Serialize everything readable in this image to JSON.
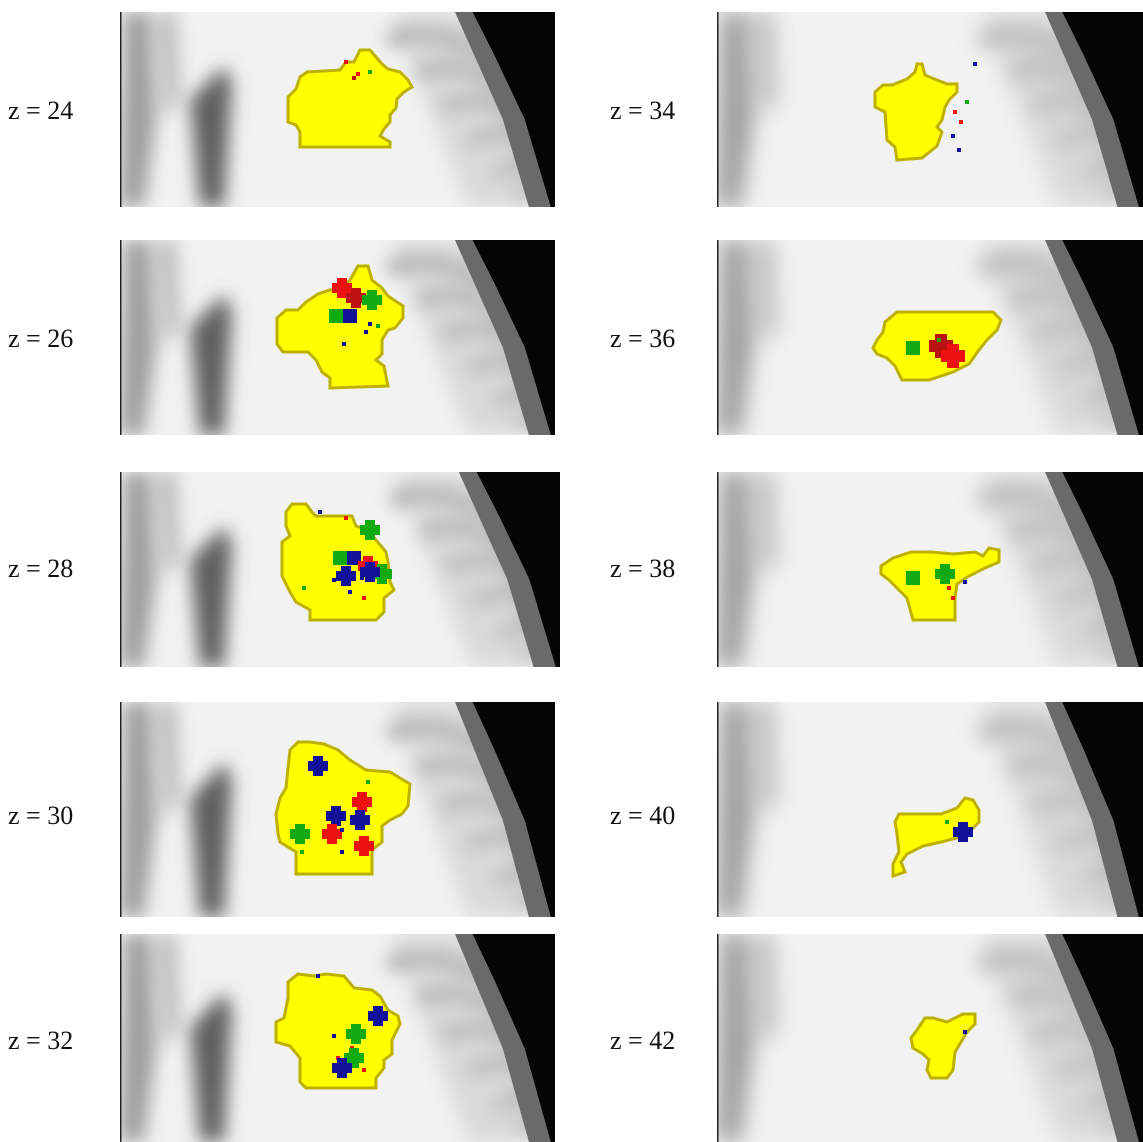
{
  "figure": {
    "slices": [
      {
        "label": "z = 24"
      },
      {
        "label": "z = 34"
      },
      {
        "label": "z = 26"
      },
      {
        "label": "z = 36"
      },
      {
        "label": "z = 28"
      },
      {
        "label": "z = 38"
      },
      {
        "label": "z = 30"
      },
      {
        "label": "z = 40"
      },
      {
        "label": "z = 32"
      },
      {
        "label": "z = 42"
      }
    ],
    "colors": {
      "region_fill": "#ffff00",
      "region_edge": "#bdb100",
      "marker_red": "#ee1111",
      "marker_darkred": "#bb1111",
      "marker_green": "#11aa11",
      "marker_blue": "#111199"
    }
  }
}
